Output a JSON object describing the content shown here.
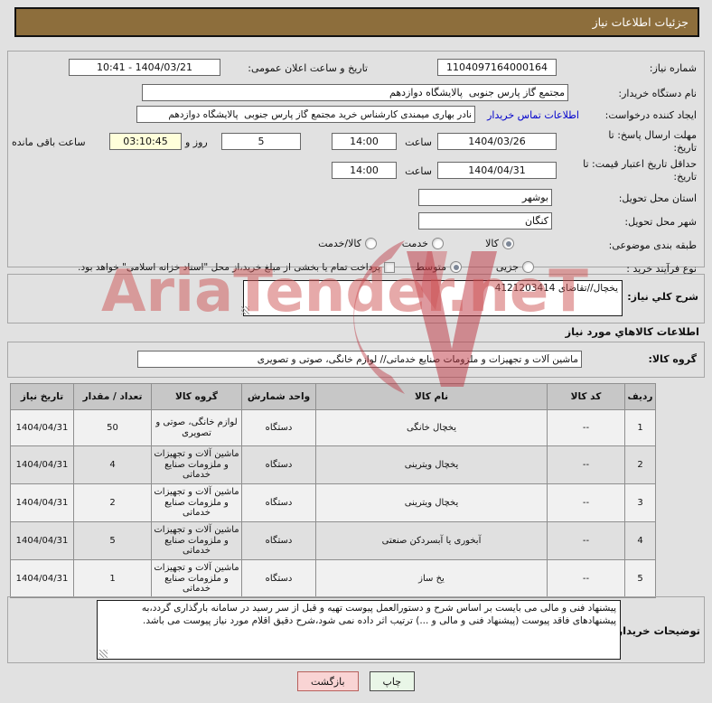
{
  "header": {
    "title": "جزئیات اطلاعات نیاز"
  },
  "form": {
    "need_number": {
      "label": "شماره نیاز:",
      "value": "1104097164000164"
    },
    "announce": {
      "label": "تاریخ و ساعت اعلان عمومی:",
      "value": "1404/03/21 - 10:41"
    },
    "buyer_org": {
      "label": "نام دستگاه خریدار:",
      "value": "مجتمع گاز پارس جنوبی  پالایشگاه دوازدهم"
    },
    "creator": {
      "label": "ایجاد کننده درخواست:",
      "contact_link": "اطلاعات تماس خریدار",
      "value": "نادر بهاری میمندی کارشناس خرید مجتمع گاز پارس جنوبی  پالایشگاه دوازدهم"
    },
    "deadline": {
      "label": "مهلت ارسال پاسخ: تا تاریخ:",
      "date": "1404/03/26",
      "hour_label": "ساعت",
      "time": "14:00"
    },
    "remaining": {
      "days": "5",
      "days_label": "روز و",
      "countdown": "03:10:45",
      "suffix": "ساعت باقی مانده"
    },
    "price_validity": {
      "label": "حداقل تاریخ اعتبار قیمت: تا تاریخ:",
      "date": "1404/04/31",
      "hour_label": "ساعت",
      "time": "14:00"
    },
    "province": {
      "label": "استان محل تحویل:",
      "value": "بوشهر"
    },
    "city": {
      "label": "شهر محل تحویل:",
      "value": "کنگان"
    },
    "classification": {
      "label": "طبقه بندی موضوعی:",
      "options": [
        {
          "label": "کالا",
          "selected": true
        },
        {
          "label": "خدمت",
          "selected": false
        },
        {
          "label": "کالا/خدمت",
          "selected": false
        }
      ]
    },
    "process_type": {
      "label": "نوع فرآیند خرید :",
      "options": [
        {
          "label": "جزیی",
          "selected": false
        },
        {
          "label": "متوسط",
          "selected": true
        }
      ],
      "treasury_checkbox": {
        "label": "پرداخت تمام یا بخشی از مبلغ خرید،از محل \"اسناد خزانه اسلامی\" خواهد بود.",
        "checked": false
      }
    }
  },
  "description": {
    "label": "شرح كلي نياز:",
    "value": "یخچال//تقاضای 4121203414"
  },
  "goods_section": {
    "title": "اطلاعات كالاهاي مورد نياز",
    "group": {
      "label": "گروه کالا:",
      "value": "ماشین آلات و تجهیزات و ملزومات صنایع خدماتی// لوازم خانگی، صوتی و تصویری"
    }
  },
  "table": {
    "headers": [
      "ردیف",
      "کد کالا",
      "نام کالا",
      "واحد شمارش",
      "گروه کالا",
      "تعداد / مقدار",
      "تاریخ نیاز"
    ],
    "rows": [
      [
        "1",
        "--",
        "یخچال خانگی",
        "دستگاه",
        "لوازم خانگی، صوتی و تصویری",
        "50",
        "1404/04/31"
      ],
      [
        "2",
        "--",
        "یخچال ویترینی",
        "دستگاه",
        "ماشین آلات و تجهیزات و ملزومات صنایع خدماتی",
        "4",
        "1404/04/31"
      ],
      [
        "3",
        "--",
        "یخچال ویترینی",
        "دستگاه",
        "ماشین آلات و تجهیزات و ملزومات صنایع خدماتی",
        "2",
        "1404/04/31"
      ],
      [
        "4",
        "--",
        "آبخوری یا آبسردکن صنعتی",
        "دستگاه",
        "ماشین آلات و تجهیزات و ملزومات صنایع خدماتی",
        "5",
        "1404/04/31"
      ],
      [
        "5",
        "--",
        "یخ ساز",
        "دستگاه",
        "ماشین آلات و تجهیزات و ملزومات صنایع خدماتی",
        "1",
        "1404/04/31"
      ]
    ]
  },
  "buyer_notes": {
    "label": "توضيحات خريدار:",
    "value": "پیشنهاد فنی و مالی می بایست بر اساس شرح و دستورالعمل پیوست تهیه و قبل از سر رسید در سامانه بارگذاری گردد،به پیشنهادهای فاقد پیوست (پیشنهاد فنی و مالی و ...) ترتیب اثر داده نمی شود،شرح دقیق اقلام مورد نیاز پیوست می باشد."
  },
  "footer": {
    "print": "چاپ",
    "back": "بازگشت"
  },
  "watermark": {
    "text": "AriaTender.neT"
  },
  "colors": {
    "header_bg": "#8d6e3c",
    "page_bg": "#e1e1e1",
    "link_blue": "#0000cc",
    "countdown_yellow": "#ffffda",
    "print_btn_green": "#e9f6e7",
    "back_btn_pink": "#f9d4d4",
    "watermark_red": "#ce5454",
    "table_header_gray": "#c7c7c7"
  }
}
